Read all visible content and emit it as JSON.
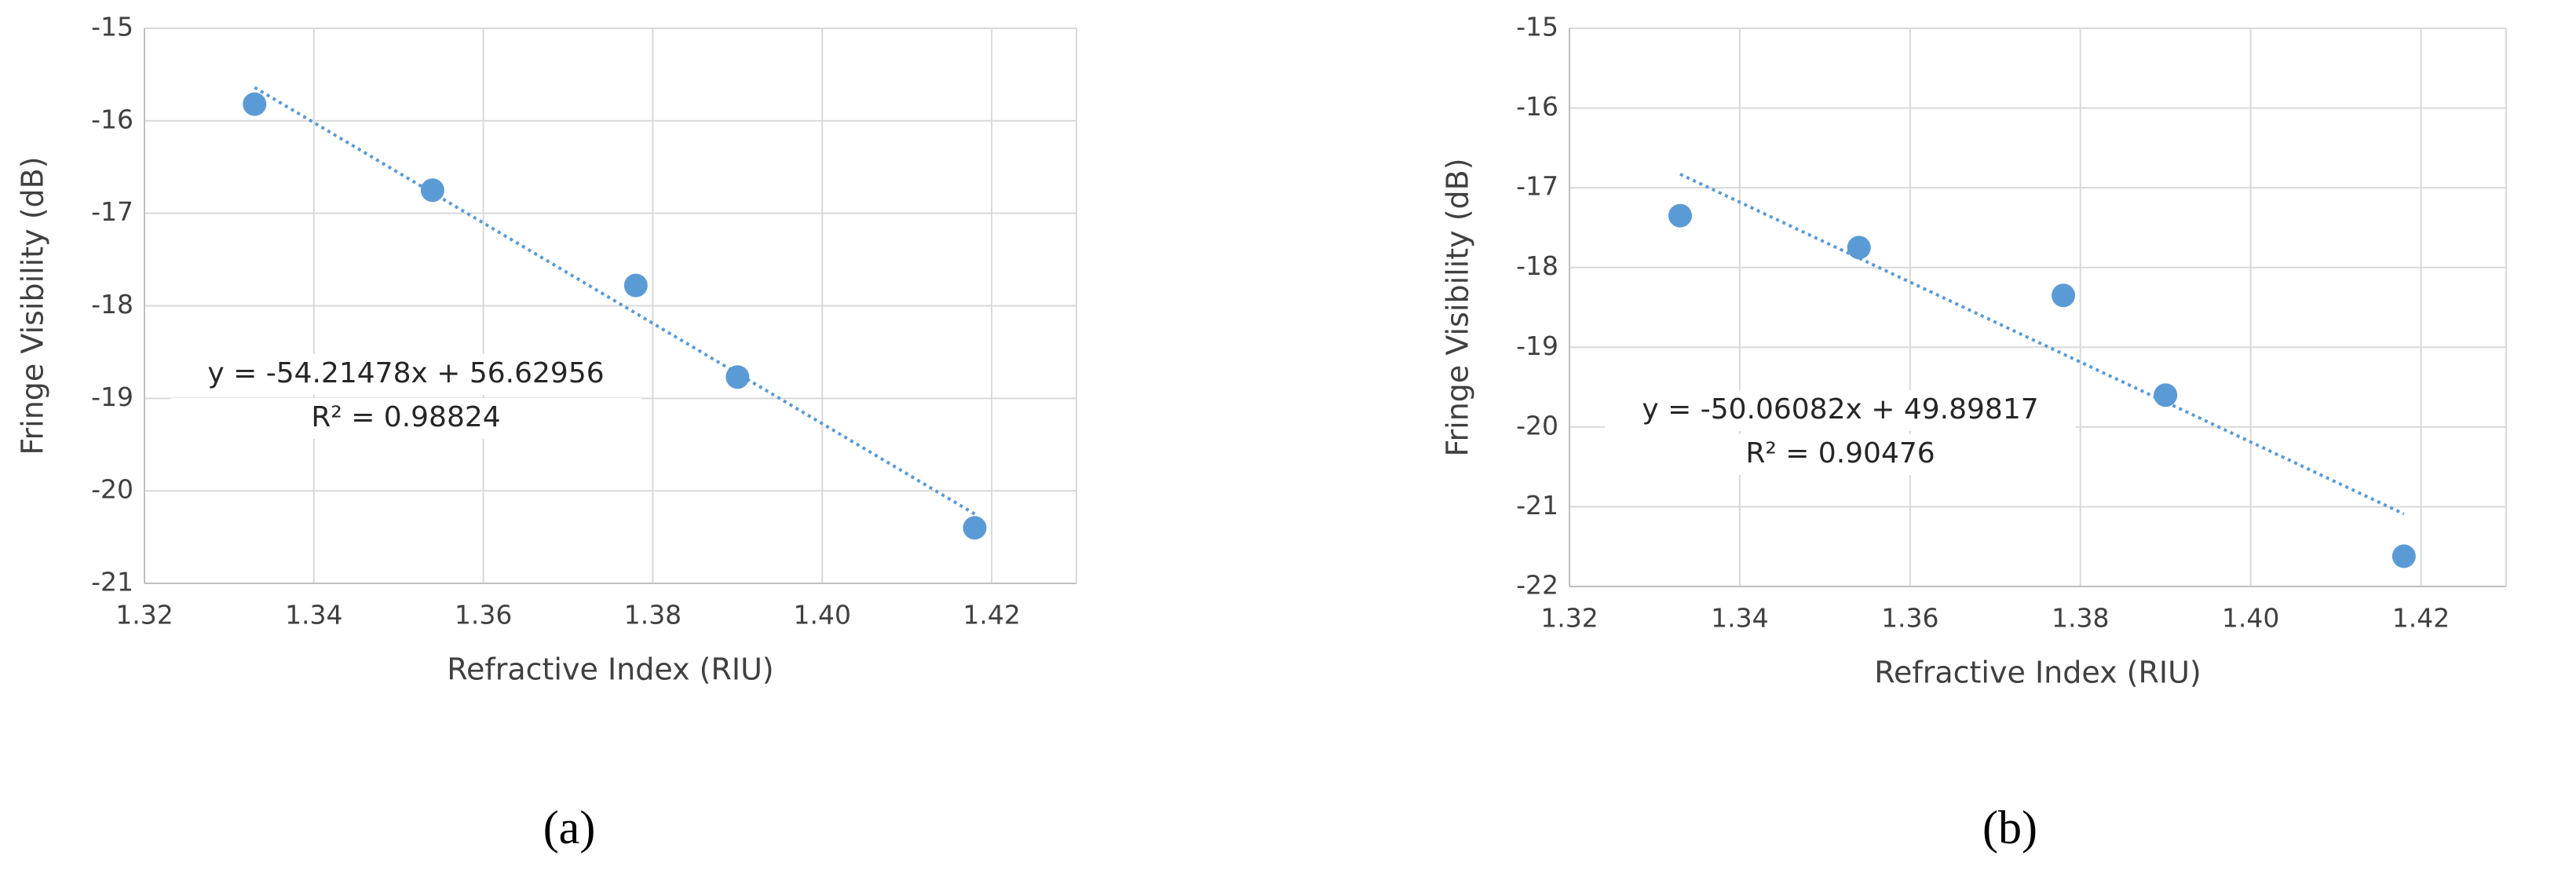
{
  "chart_data": [
    {
      "type": "scatter",
      "label": "(a)",
      "x_label": "Refractive Index (RIU)",
      "y_label": "Fringe Visibility (dB)",
      "x": [
        1.333,
        1.354,
        1.378,
        1.39,
        1.418
      ],
      "values": [
        -15.82,
        -16.75,
        -17.78,
        -18.77,
        -20.4
      ],
      "color": "#5b9bd5",
      "trendline": {
        "x": [
          1.333,
          1.418
        ],
        "y": [
          -15.64,
          -20.25
        ]
      },
      "annotations": [
        "y = -54.21478x + 56.62956",
        "R² = 0.98824"
      ],
      "xlim": [
        1.32,
        1.43
      ],
      "xticks": [
        1.32,
        1.34,
        1.36,
        1.38,
        {
          "value": 1.4,
          "label": "1.40"
        },
        1.42
      ],
      "ylim": [
        -21,
        -15
      ],
      "yticks": [
        -21,
        -20,
        -19,
        -18,
        -17,
        -16,
        -15
      ],
      "grid": true
    },
    {
      "type": "scatter",
      "label": "(b)",
      "x_label": "Refractive Index (RIU)",
      "y_label": "Fringe Visibility (dB)",
      "x": [
        1.333,
        1.354,
        1.378,
        1.39,
        1.418
      ],
      "values": [
        -17.35,
        -17.75,
        -18.35,
        -19.6,
        -21.62
      ],
      "color": "#5b9bd5",
      "trendline": {
        "x": [
          1.333,
          1.418
        ],
        "y": [
          -16.83,
          -21.09
        ]
      },
      "annotations": [
        "y = -50.06082x + 49.89817",
        "R² = 0.90476"
      ],
      "xlim": [
        1.32,
        1.43
      ],
      "xticks": [
        1.32,
        1.34,
        1.36,
        1.38,
        {
          "value": 1.4,
          "label": "1.40"
        },
        1.42
      ],
      "ylim": [
        -22,
        -15
      ],
      "yticks": [
        -22,
        -21,
        -20,
        -19,
        -18,
        -17,
        -16,
        -15
      ],
      "grid": true
    }
  ]
}
